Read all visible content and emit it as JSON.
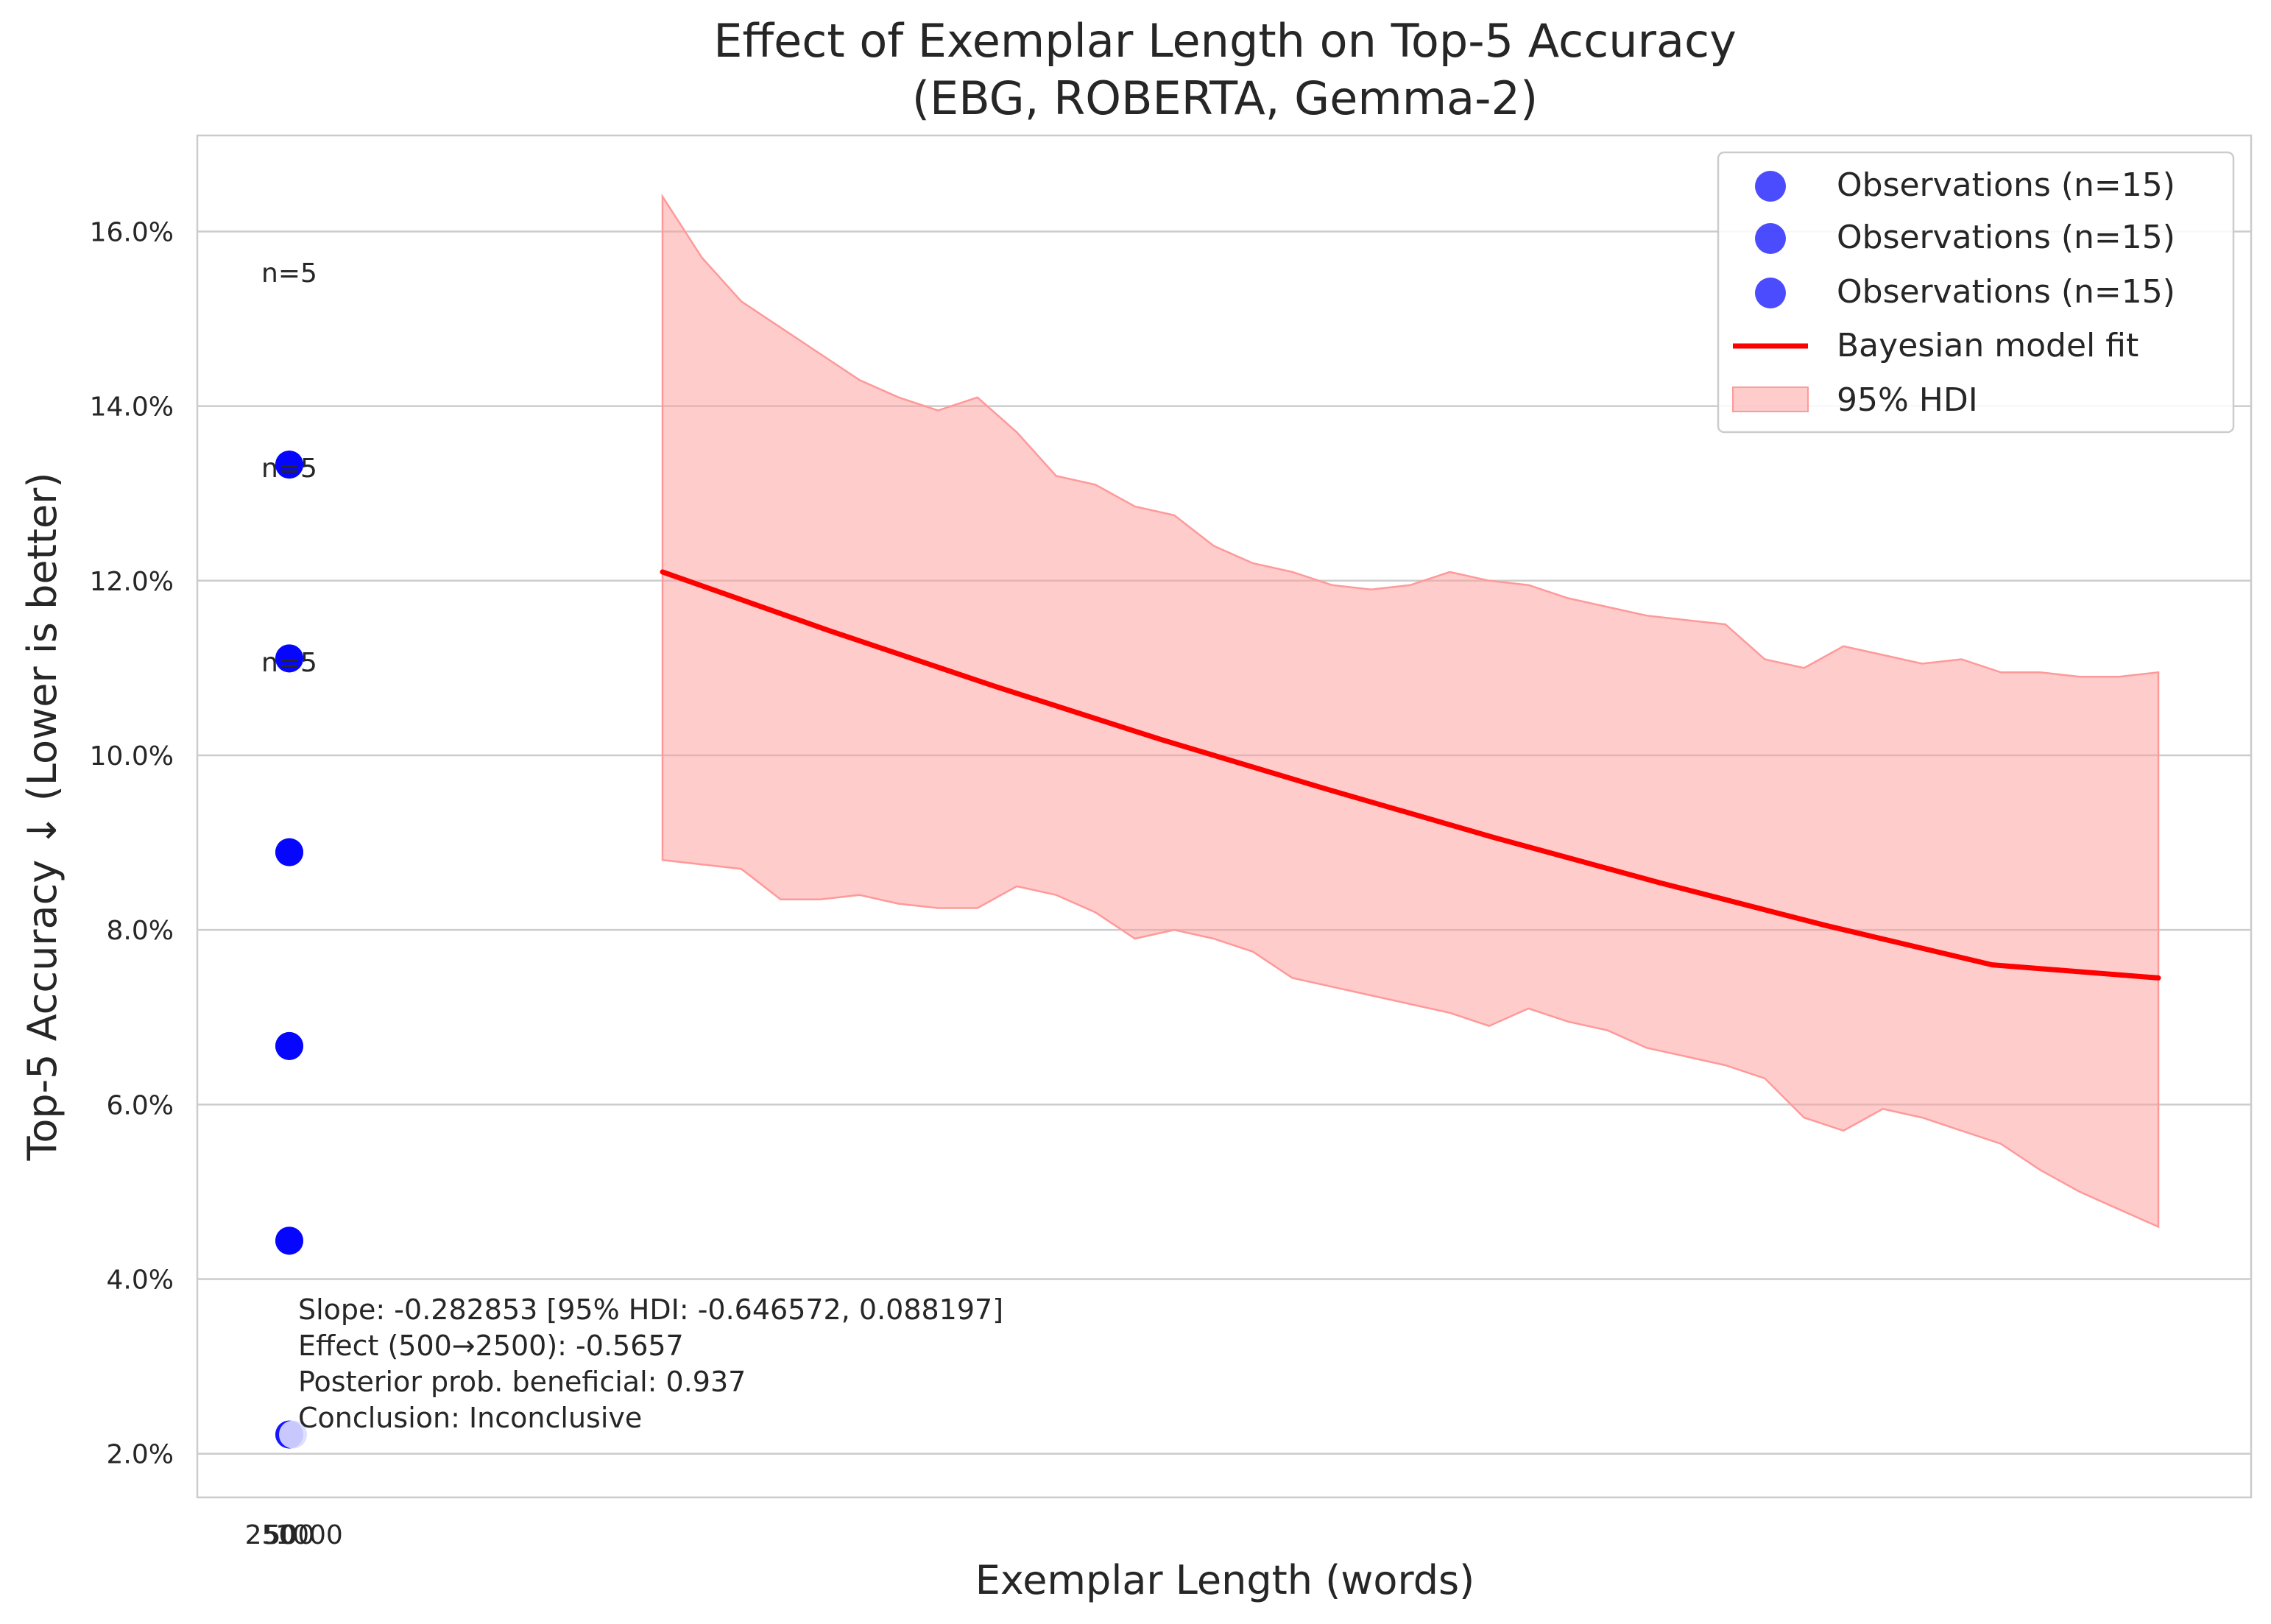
{
  "chart_data": {
    "type": "scatter",
    "title": "Effect of Exemplar Length on Top-5 Accuracy",
    "subtitle": "(EBG, ROBERTA, Gemma-2)",
    "xlabel": "Exemplar Length (words)",
    "ylabel": "Top-5 Accuracy ↓ (Lower is better)",
    "x_tick_labels": [
      "250",
      "500",
      "1000"
    ],
    "ylim": [
      1.5,
      17.1
    ],
    "y_ticks": [
      2,
      4,
      6,
      8,
      10,
      12,
      14,
      16
    ],
    "y_tick_labels": [
      "2.0%",
      "4.0%",
      "6.0%",
      "8.0%",
      "10.0%",
      "12.0%",
      "14.0%",
      "16.0%"
    ],
    "grid": "y",
    "legend_position": "top-right",
    "colors": {
      "points": "#0000ff",
      "fit": "#ff0000",
      "band": "#ff9999"
    },
    "series": [
      {
        "name": "Observations (n=15)",
        "kind": "scatter",
        "y": [
          13.33,
          11.11,
          8.89,
          6.67,
          4.44,
          2.22
        ]
      },
      {
        "name": "Observations (n=15)",
        "kind": "scatter",
        "y": [
          13.33,
          11.11,
          8.89,
          6.67,
          4.44,
          2.22
        ]
      },
      {
        "name": "Observations (n=15)",
        "kind": "scatter",
        "y": [
          13.33,
          11.11,
          8.89,
          6.67,
          4.44,
          2.22
        ]
      },
      {
        "name": "Bayesian model fit",
        "kind": "line"
      },
      {
        "name": "95% HDI",
        "kind": "band"
      }
    ],
    "fit_line": {
      "start": 12.1,
      "end": 7.45,
      "y": [
        12.1,
        11.43,
        10.79,
        10.18,
        9.61,
        9.06,
        8.54,
        8.05,
        7.6,
        7.45
      ]
    },
    "hdi_band": {
      "upper": [
        16.4,
        15.7,
        15.2,
        14.9,
        14.6,
        14.3,
        14.1,
        13.95,
        14.1,
        13.7,
        13.2,
        13.1,
        12.85,
        12.75,
        12.4,
        12.2,
        12.1,
        11.95,
        11.9,
        11.95,
        12.1,
        12.0,
        11.95,
        11.8,
        11.7,
        11.6,
        11.55,
        11.5,
        11.1,
        11.0,
        11.25,
        11.15,
        11.05,
        11.1,
        10.95,
        10.95,
        10.9,
        10.9,
        10.95
      ],
      "lower": [
        8.8,
        8.75,
        8.7,
        8.35,
        8.35,
        8.4,
        8.3,
        8.25,
        8.25,
        8.5,
        8.4,
        8.2,
        7.9,
        8.0,
        7.9,
        7.75,
        7.45,
        7.35,
        7.25,
        7.15,
        7.05,
        6.9,
        7.1,
        6.95,
        6.85,
        6.65,
        6.55,
        6.45,
        6.3,
        5.85,
        5.7,
        5.95,
        5.85,
        5.7,
        5.55,
        5.25,
        5.0,
        4.8,
        4.6
      ]
    },
    "count_labels": [
      {
        "text": "n=5",
        "y": 15.5
      },
      {
        "text": "n=5",
        "y": 13.3
      },
      {
        "text": "n=5",
        "y": 11.1
      }
    ],
    "annotation": [
      "Slope: -0.282853 [95% HDI: -0.646572, 0.088197]",
      "Effect (500→2500): -0.5657",
      "Posterior prob. beneficial: 0.937",
      "Conclusion: Inconclusive"
    ]
  }
}
